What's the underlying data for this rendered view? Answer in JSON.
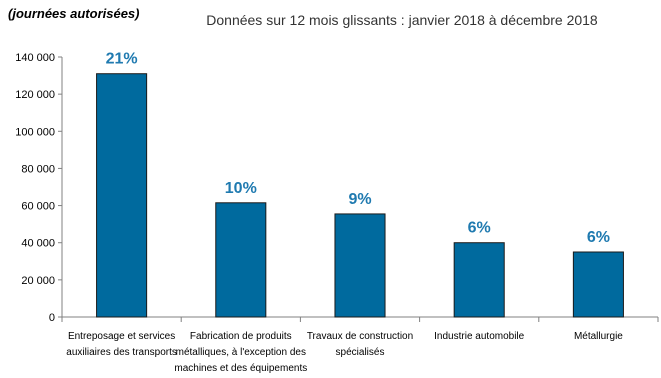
{
  "chart_data": {
    "type": "bar",
    "title": "Données sur 12 mois glissants : janvier 2018 à décembre 2018",
    "ylabel": "(journées autorisées)",
    "xlabel": "",
    "ylim": [
      0,
      140000
    ],
    "yticks": [
      "0",
      "20 000",
      "40 000",
      "60 000",
      "80 000",
      "100 000",
      "120 000",
      "140 000"
    ],
    "ytick_values": [
      0,
      20000,
      40000,
      60000,
      80000,
      100000,
      120000,
      140000
    ],
    "grid": false,
    "legend": "none",
    "bar_color": "#006a9e",
    "label_color": "#1f7ab0",
    "categories": [
      [
        "Entreposage et services",
        "auxiliaires des transports"
      ],
      [
        "Fabrication de produits",
        "métalliques, à l'exception des",
        "machines et des équipements"
      ],
      [
        "Travaux de construction",
        "spécialisés"
      ],
      [
        "Industrie automobile"
      ],
      [
        "Métallurgie"
      ]
    ],
    "values": [
      131000,
      61500,
      55500,
      40000,
      35000
    ],
    "data_labels": [
      "21%",
      "10%",
      "9%",
      "6%",
      "6%"
    ]
  }
}
